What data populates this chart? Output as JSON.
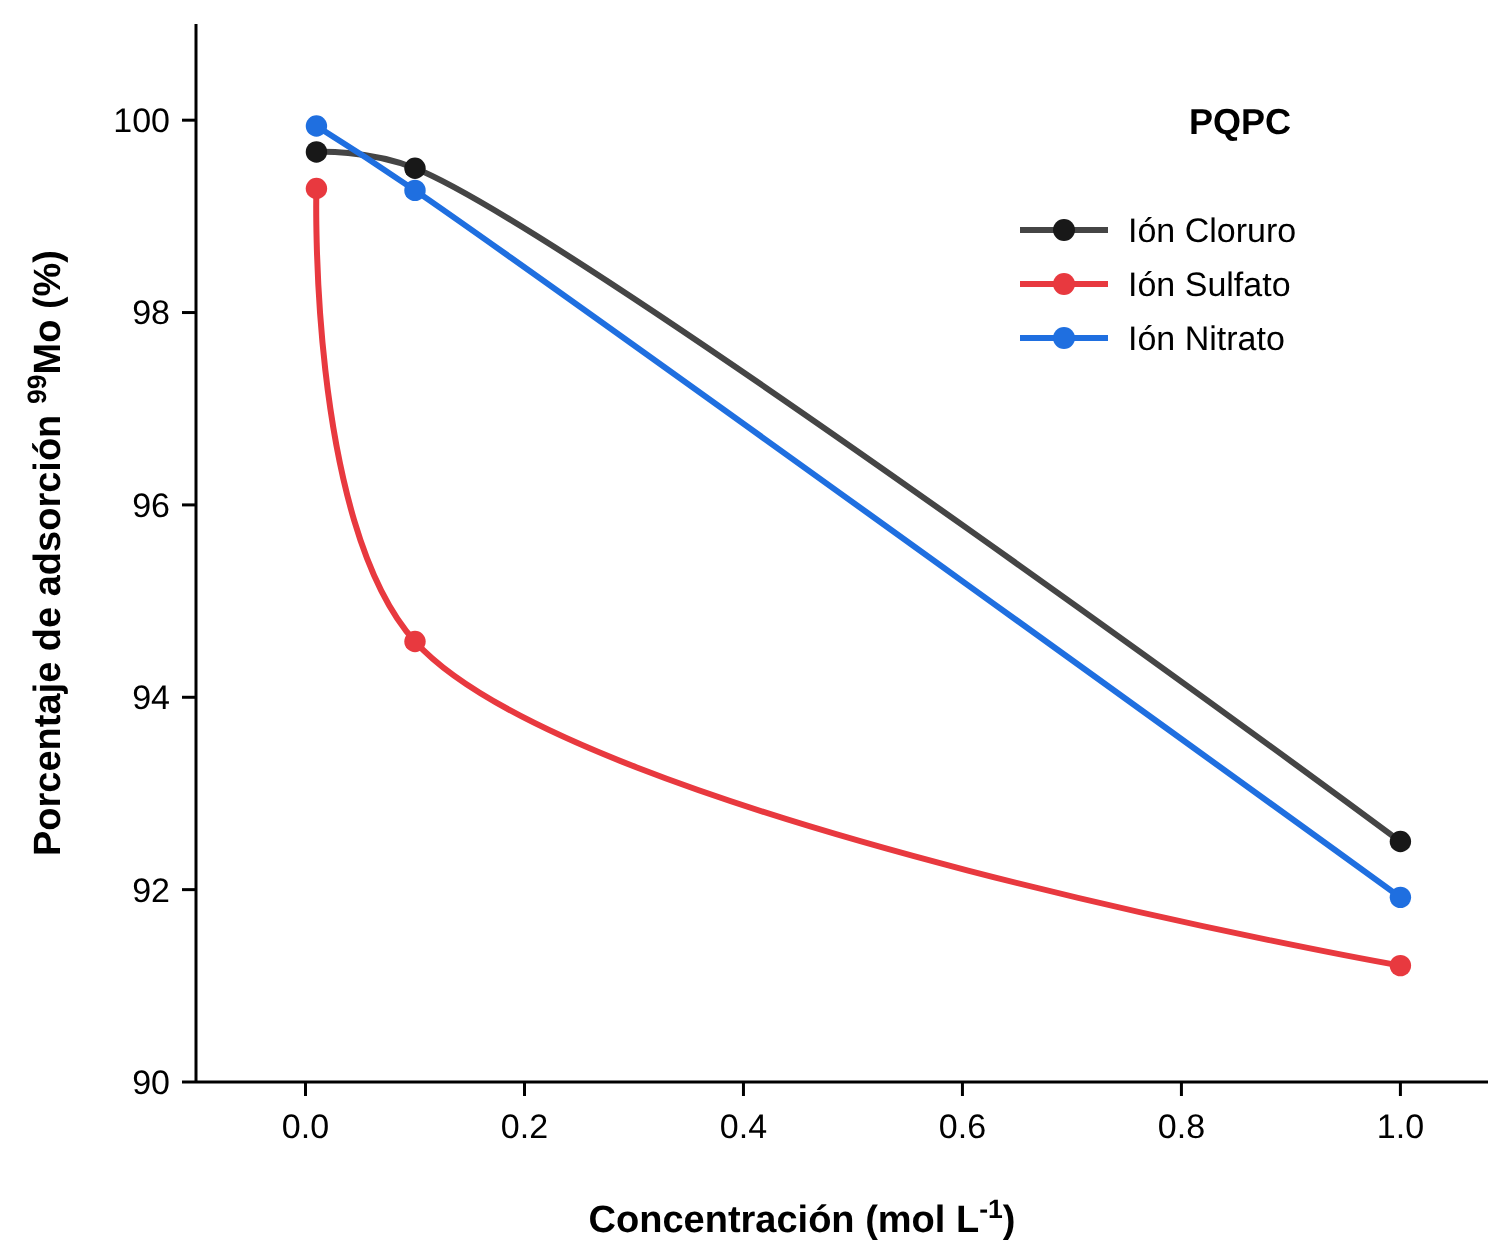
{
  "chart_data": {
    "type": "line",
    "xlabel": "Concentración (mol L$^{-1}$)",
    "ylabel": "Porcentaje de adsorción $^{99}$Mo (%)",
    "legend_title": "PQPC",
    "legend": "top right",
    "marker": "circle",
    "line_style": "solid",
    "grid": false,
    "xlim": [
      -0.1,
      1.08
    ],
    "xticks": [
      {
        "value": 0,
        "label": "0.0"
      },
      {
        "value": 0.2,
        "label": "0.2"
      },
      {
        "value": 0.4,
        "label": "0.4"
      },
      {
        "value": 0.6,
        "label": "0.6"
      },
      {
        "value": 0.8,
        "label": "0.8"
      },
      {
        "value": 1,
        "label": "1.0"
      }
    ],
    "ylim": [
      90,
      101
    ],
    "yticks": [
      90,
      92,
      94,
      96,
      98,
      100
    ],
    "x": [
      0.01,
      0.1,
      1.0
    ],
    "series": [
      {
        "name": "Ión Cloruro",
        "color": "#454545",
        "values": [
          99.67,
          99.5,
          92.5
        ]
      },
      {
        "name": "Ión Sulfato",
        "color": "#e8393f",
        "values": [
          99.29,
          94.58,
          91.21
        ]
      },
      {
        "name": "Ión Nitrato",
        "color": "#1f6fe0",
        "values": [
          99.94,
          99.27,
          91.92
        ]
      }
    ]
  }
}
